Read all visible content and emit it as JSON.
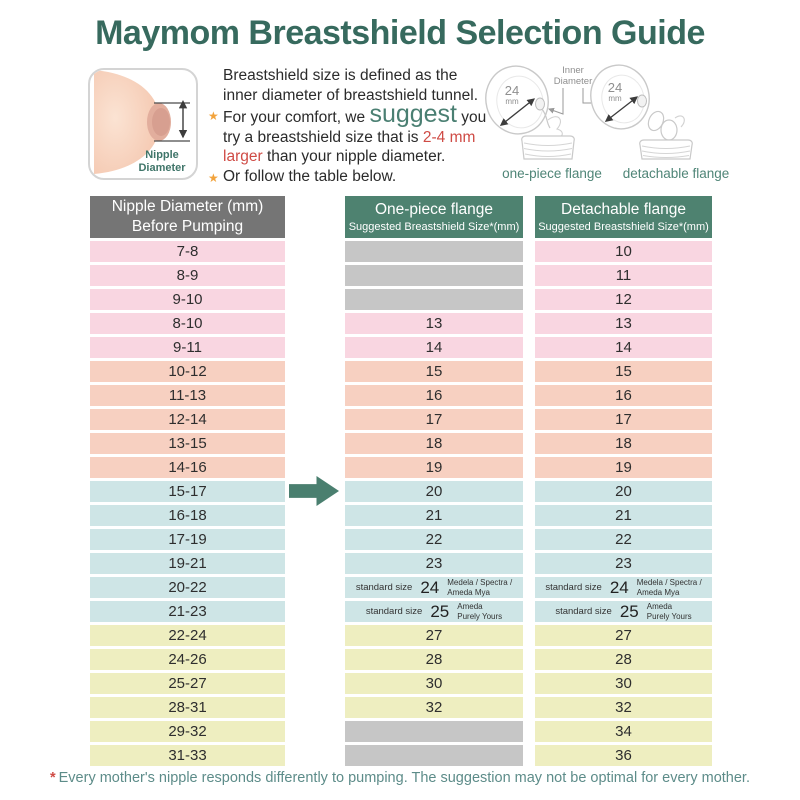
{
  "title": "Maymom Breastshield Selection Guide",
  "intro": {
    "bullet_icon": "★",
    "diagram": {
      "label_line1": "Nipple",
      "label_line2": "Diameter"
    },
    "line1": "Breastshield size is defined as the inner diameter of breastshield tunnel.",
    "point1": {
      "pre": "For your comfort, we ",
      "emphasis": "suggest",
      "mid": " you try a breastshield size that is ",
      "highlight": "2-4 mm larger",
      "post": " than your nipple diameter."
    },
    "point2": "Or follow the table below.",
    "flanges": {
      "inner_diameter_line1": "Inner",
      "inner_diameter_line2": "Diameter",
      "size_value": "24",
      "size_unit": "mm",
      "left_caption": "one-piece flange",
      "right_caption": "detachable flange"
    }
  },
  "table": {
    "headers": [
      {
        "line1": "Nipple Diameter (mm)",
        "line2": "Before Pumping"
      },
      {
        "line1": "One-piece flange",
        "line2": "Suggested Breastshield Size*(mm)"
      },
      {
        "line1": "Detachable flange",
        "line2": "Suggested Breastshield Size*(mm)"
      }
    ],
    "standard_label": "standard size",
    "rows": [
      {
        "range": "7-8",
        "group": "pink",
        "one_piece": null,
        "detachable": "10"
      },
      {
        "range": "8-9",
        "group": "pink",
        "one_piece": null,
        "detachable": "11"
      },
      {
        "range": "9-10",
        "group": "pink",
        "one_piece": null,
        "detachable": "12"
      },
      {
        "range": "8-10",
        "group": "pink",
        "one_piece": "13",
        "detachable": "13"
      },
      {
        "range": "9-11",
        "group": "pink",
        "one_piece": "14",
        "detachable": "14"
      },
      {
        "range": "10-12",
        "group": "salmon",
        "one_piece": "15",
        "detachable": "15"
      },
      {
        "range": "11-13",
        "group": "salmon",
        "one_piece": "16",
        "detachable": "16"
      },
      {
        "range": "12-14",
        "group": "salmon",
        "one_piece": "17",
        "detachable": "17"
      },
      {
        "range": "13-15",
        "group": "salmon",
        "one_piece": "18",
        "detachable": "18"
      },
      {
        "range": "14-16",
        "group": "salmon",
        "one_piece": "19",
        "detachable": "19"
      },
      {
        "range": "15-17",
        "group": "blue",
        "one_piece": "20",
        "detachable": "20",
        "arrow": true
      },
      {
        "range": "16-18",
        "group": "blue",
        "one_piece": "21",
        "detachable": "21"
      },
      {
        "range": "17-19",
        "group": "blue",
        "one_piece": "22",
        "detachable": "22"
      },
      {
        "range": "19-21",
        "group": "blue",
        "one_piece": "23",
        "detachable": "23"
      },
      {
        "range": "20-22",
        "group": "blue",
        "standard": {
          "value": "24",
          "brand_line1": "Medela / Spectra /",
          "brand_line2": "Ameda Mya"
        }
      },
      {
        "range": "21-23",
        "group": "blue",
        "standard": {
          "value": "25",
          "brand_line1": "Ameda",
          "brand_line2": "Purely Yours"
        }
      },
      {
        "range": "22-24",
        "group": "yellow",
        "one_piece": "27",
        "detachable": "27"
      },
      {
        "range": "24-26",
        "group": "yellow",
        "one_piece": "28",
        "detachable": "28"
      },
      {
        "range": "25-27",
        "group": "yellow",
        "one_piece": "30",
        "detachable": "30"
      },
      {
        "range": "28-31",
        "group": "yellow",
        "one_piece": "32",
        "detachable": "32"
      },
      {
        "range": "29-32",
        "group": "yellow",
        "one_piece": null,
        "detachable": "34"
      },
      {
        "range": "31-33",
        "group": "yellow",
        "one_piece": null,
        "detachable": "36"
      }
    ]
  },
  "footnote": {
    "asterisk": "*",
    "text": "Every mother's nipple responds differently to pumping. The suggestion may not be optimal for every mother."
  },
  "colors": {
    "title_teal": "#376a5e",
    "header_teal": "#4e8270",
    "header_gray": "#757575",
    "row_pink": "#f9d6e1",
    "row_salmon": "#f7d0c1",
    "row_blue": "#cee5e6",
    "row_yellow": "#eeeec0",
    "empty_gray": "#c6c6c6",
    "arrow_teal": "#4a7f6f",
    "accent_red": "#cf4b45",
    "star_orange": "#f2a33c"
  }
}
